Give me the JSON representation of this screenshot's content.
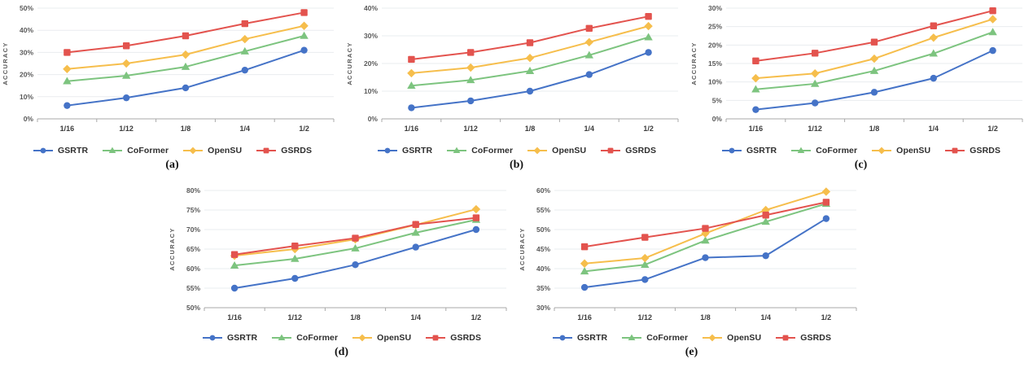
{
  "palette": {
    "gsrtr_blue": "#4573C7",
    "coformer_green": "#7DC47F",
    "opensu_yellow": "#F6BE4C",
    "gsrds_red": "#E3534E",
    "gridline": "#EAECEF",
    "axis": "#A9A9A9"
  },
  "chart_data": [
    {
      "type": "line",
      "caption": "(a)",
      "ylabel": "ACCURACY",
      "categories": [
        "1/16",
        "1/12",
        "1/8",
        "1/4",
        "1/2"
      ],
      "ylim": [
        0,
        50
      ],
      "ytick_step": 10,
      "grid": true,
      "legend_position": "bottom",
      "series": [
        {
          "name": "GSRTR",
          "marker": "circle",
          "color": "#4573C7",
          "values": [
            6,
            9.5,
            14,
            22,
            31
          ]
        },
        {
          "name": "CoFormer",
          "marker": "triangle",
          "color": "#7DC47F",
          "values": [
            17,
            19.5,
            23.5,
            30.5,
            37.5
          ]
        },
        {
          "name": "OpenSU",
          "marker": "diamond",
          "color": "#F6BE4C",
          "values": [
            22.5,
            25,
            29,
            36,
            42
          ]
        },
        {
          "name": "GSRDS",
          "marker": "square",
          "color": "#E3534E",
          "values": [
            30,
            33,
            37.5,
            43,
            48
          ]
        }
      ]
    },
    {
      "type": "line",
      "caption": "(b)",
      "ylabel": "ACCURACY",
      "categories": [
        "1/16",
        "1/12",
        "1/8",
        "1/4",
        "1/2"
      ],
      "ylim": [
        0,
        40
      ],
      "ytick_step": 10,
      "grid": true,
      "legend_position": "bottom",
      "series": [
        {
          "name": "GSRTR",
          "marker": "circle",
          "color": "#4573C7",
          "values": [
            4,
            6.5,
            10,
            16,
            24
          ]
        },
        {
          "name": "CoFormer",
          "marker": "triangle",
          "color": "#7DC47F",
          "values": [
            12,
            14,
            17.3,
            23,
            29.5
          ]
        },
        {
          "name": "OpenSU",
          "marker": "diamond",
          "color": "#F6BE4C",
          "values": [
            16.5,
            18.5,
            22,
            27.7,
            33.5
          ]
        },
        {
          "name": "GSRDS",
          "marker": "square",
          "color": "#E3534E",
          "values": [
            21.5,
            24,
            27.5,
            32.7,
            37
          ]
        }
      ]
    },
    {
      "type": "line",
      "caption": "(c)",
      "ylabel": "ACCURACY",
      "categories": [
        "1/16",
        "1/12",
        "1/8",
        "1/4",
        "1/2"
      ],
      "ylim": [
        0,
        30
      ],
      "ytick_step": 5,
      "grid": true,
      "legend_position": "bottom",
      "series": [
        {
          "name": "GSRTR",
          "marker": "circle",
          "color": "#4573C7",
          "values": [
            2.5,
            4.3,
            7.2,
            11,
            18.5
          ]
        },
        {
          "name": "CoFormer",
          "marker": "triangle",
          "color": "#7DC47F",
          "values": [
            8,
            9.5,
            13,
            17.7,
            23.5
          ]
        },
        {
          "name": "OpenSU",
          "marker": "diamond",
          "color": "#F6BE4C",
          "values": [
            11,
            12.3,
            16.3,
            22,
            27
          ]
        },
        {
          "name": "GSRDS",
          "marker": "square",
          "color": "#E3534E",
          "values": [
            15.7,
            17.8,
            20.8,
            25.2,
            29.3
          ]
        }
      ]
    },
    {
      "type": "line",
      "caption": "(d)",
      "ylabel": "ACCURACY",
      "categories": [
        "1/16",
        "1/12",
        "1/8",
        "1/4",
        "1/2"
      ],
      "ylim": [
        50,
        80
      ],
      "ytick_step": 5,
      "grid": true,
      "legend_position": "bottom",
      "series": [
        {
          "name": "GSRTR",
          "marker": "circle",
          "color": "#4573C7",
          "values": [
            55,
            57.5,
            61,
            65.5,
            70
          ]
        },
        {
          "name": "CoFormer",
          "marker": "triangle",
          "color": "#7DC47F",
          "values": [
            60.8,
            62.5,
            65.2,
            69.2,
            72.5
          ]
        },
        {
          "name": "OpenSU",
          "marker": "diamond",
          "color": "#F6BE4C",
          "values": [
            63.3,
            65,
            67.5,
            71.2,
            75.2
          ]
        },
        {
          "name": "GSRDS",
          "marker": "square",
          "color": "#E3534E",
          "values": [
            63.6,
            65.8,
            67.8,
            71.3,
            73
          ]
        }
      ]
    },
    {
      "type": "line",
      "caption": "(e)",
      "ylabel": "ACCURACY",
      "categories": [
        "1/16",
        "1/12",
        "1/8",
        "1/4",
        "1/2"
      ],
      "ylim": [
        30,
        60
      ],
      "ytick_step": 5,
      "grid": true,
      "legend_position": "bottom",
      "series": [
        {
          "name": "GSRTR",
          "marker": "circle",
          "color": "#4573C7",
          "values": [
            35.2,
            37.2,
            42.8,
            43.3,
            52.8
          ]
        },
        {
          "name": "CoFormer",
          "marker": "triangle",
          "color": "#7DC47F",
          "values": [
            39.3,
            41,
            47.2,
            52,
            56.6
          ]
        },
        {
          "name": "OpenSU",
          "marker": "diamond",
          "color": "#F6BE4C",
          "values": [
            41.3,
            42.7,
            49,
            55,
            59.7
          ]
        },
        {
          "name": "GSRDS",
          "marker": "square",
          "color": "#E3534E",
          "values": [
            45.6,
            48,
            50.3,
            53.7,
            57
          ]
        }
      ]
    }
  ]
}
